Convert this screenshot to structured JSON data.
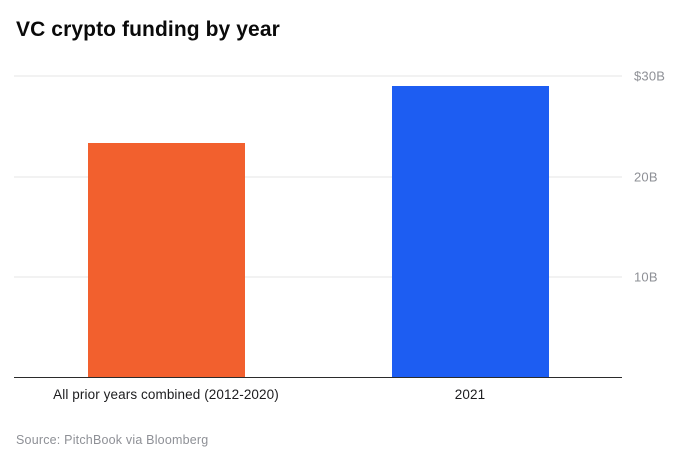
{
  "chart_data": {
    "type": "bar",
    "title": "VC crypto funding by year",
    "categories": [
      "All prior years combined (2012-2020)",
      "2021"
    ],
    "values": [
      23.4,
      29.0
    ],
    "ylim": [
      0,
      31
    ],
    "yticks": [
      {
        "value": 10,
        "label": "10B"
      },
      {
        "value": 20,
        "label": "20B"
      },
      {
        "value": 30,
        "label": "$30B"
      }
    ],
    "bar_colors": [
      "#f2602e",
      "#1d5df2"
    ],
    "gridline_color": "#e4e4e6",
    "source": "Source: PitchBook via Bloomberg"
  }
}
